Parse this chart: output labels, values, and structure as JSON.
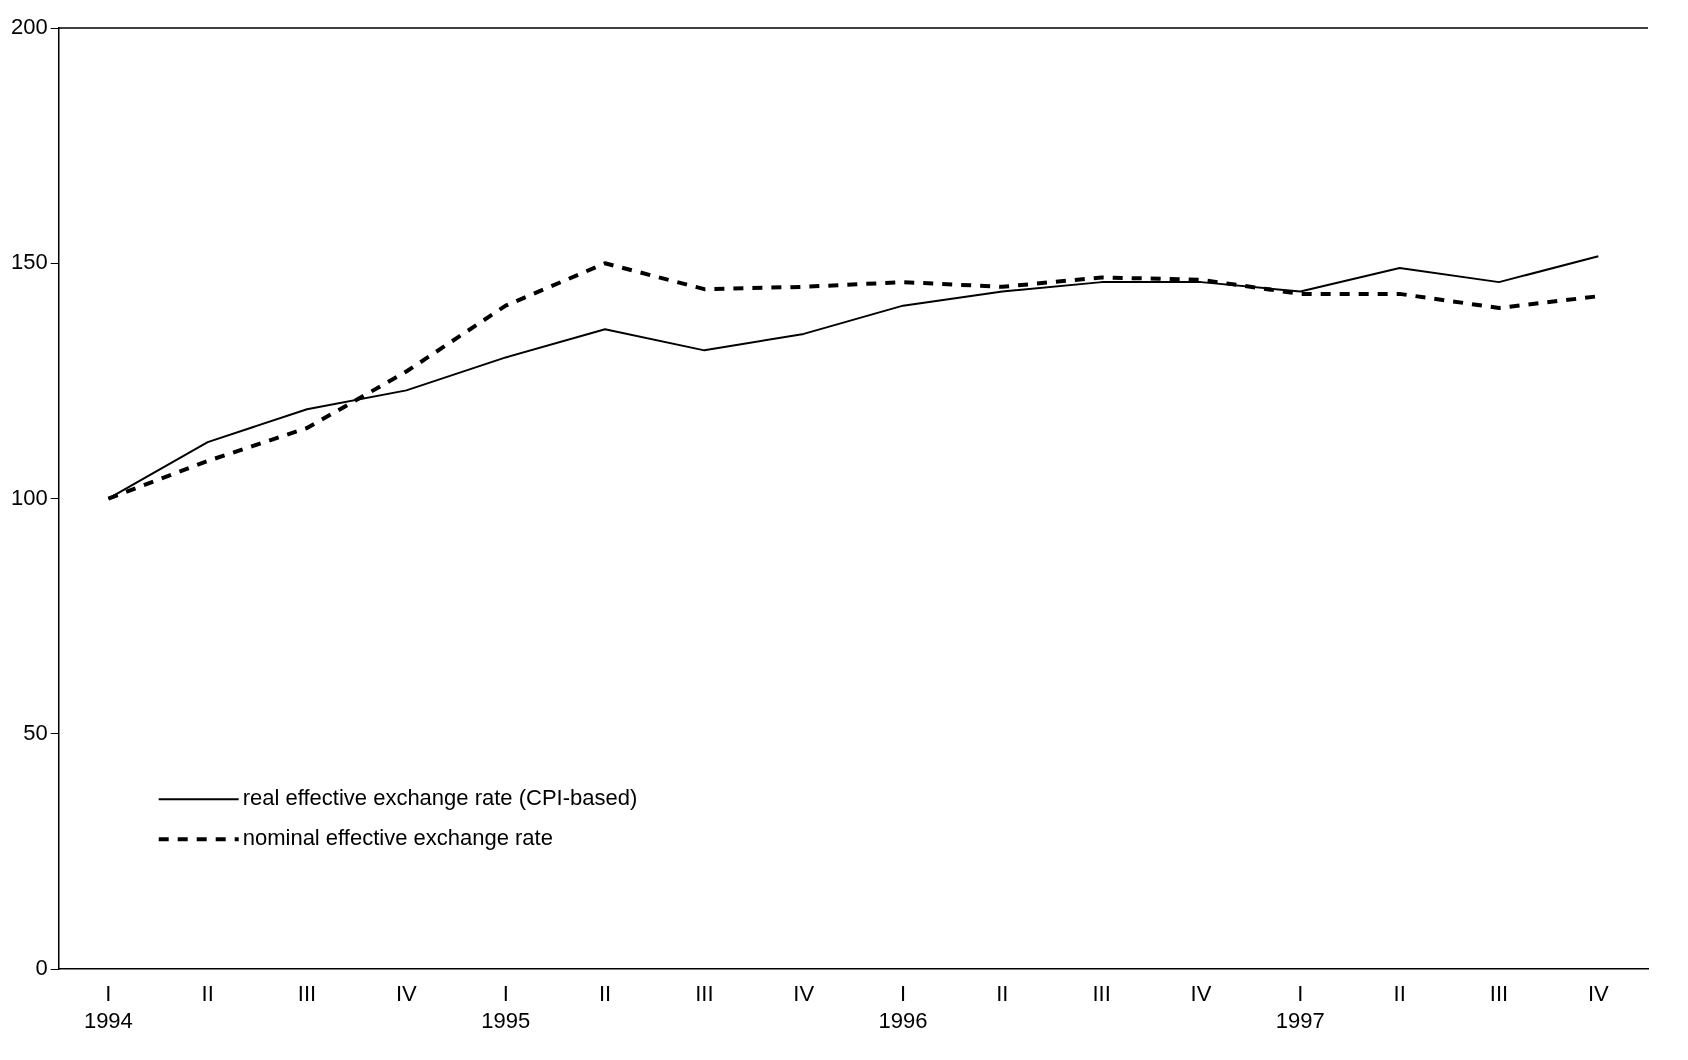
{
  "chart_data": {
    "type": "line",
    "categories": [
      "I\n1994",
      "II",
      "III",
      "IV",
      "I\n1995",
      "II",
      "III",
      "IV",
      "I\n1996",
      "II",
      "III",
      "IV",
      "I\n1997",
      "II",
      "III",
      "IV"
    ],
    "series": [
      {
        "name": "real effective exchange rate (CPI-based)",
        "color": "#000000",
        "line_style": "solid",
        "values": [
          100,
          112,
          119,
          123,
          130,
          136,
          131.5,
          135,
          141,
          144,
          146,
          146,
          144,
          149,
          146,
          151.5
        ]
      },
      {
        "name": "nominal effective exchange rate",
        "color": "#000000",
        "line_style": "dashed",
        "values": [
          100,
          108,
          115,
          127,
          141,
          150,
          144.5,
          145,
          146,
          145,
          147,
          146.5,
          143.5,
          143.5,
          140.5,
          143
        ]
      }
    ],
    "ylim": [
      0,
      200
    ],
    "yticks": [
      0,
      50,
      100,
      150,
      200
    ],
    "grid": false,
    "legend": "bottom left",
    "marker": "none"
  }
}
